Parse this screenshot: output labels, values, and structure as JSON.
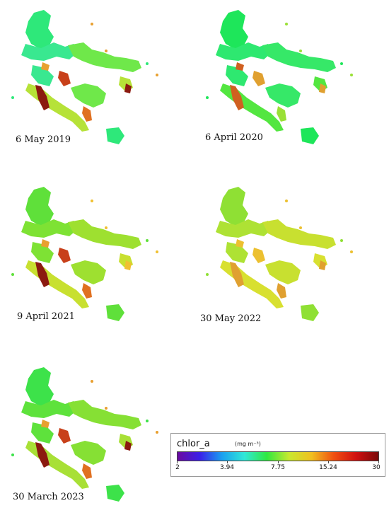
{
  "panels": [
    {
      "label": "6 May 2019",
      "fill": [
        "#2ee87a",
        "#39e890",
        "#6fe84a",
        "#b6e238"
      ],
      "hot": [
        "#8b1a10",
        "#c8401a",
        "#e07020",
        "#e8a030"
      ]
    },
    {
      "label": "6 April 2020",
      "fill": [
        "#1ee65a",
        "#2ee870",
        "#36e868",
        "#53e640"
      ],
      "hot": [
        "#d06020",
        "#e0a030",
        "#9ae036"
      ]
    },
    {
      "label": "9 April 2021",
      "fill": [
        "#5fe03a",
        "#7ee234",
        "#9ee030",
        "#c8e030"
      ],
      "hot": [
        "#8b1a10",
        "#c8401a",
        "#e07020",
        "#e8a030",
        "#f0c030"
      ]
    },
    {
      "label": "30 May 2022",
      "fill": [
        "#8fe034",
        "#aee234",
        "#c8e030",
        "#d8e030"
      ],
      "hot": [
        "#e0a030",
        "#ecc030"
      ]
    },
    {
      "label": "30 March 2023",
      "fill": [
        "#3de24a",
        "#5ee23c",
        "#86e034",
        "#a8e036"
      ],
      "hot": [
        "#8b1a10",
        "#c8401a",
        "#e07020",
        "#e8a030"
      ]
    }
  ],
  "legend": {
    "title": "chlor_a",
    "unit": "(mg m⁻³)",
    "ticks": [
      "2",
      "3.94",
      "7.75",
      "15.24",
      "30"
    ],
    "colors": [
      "#6a0aa0",
      "#3a20e8",
      "#1aa0f0",
      "#30e8d8",
      "#30e840",
      "#c8e830",
      "#f0c020",
      "#f05010",
      "#d01010",
      "#7a0a0a"
    ]
  }
}
